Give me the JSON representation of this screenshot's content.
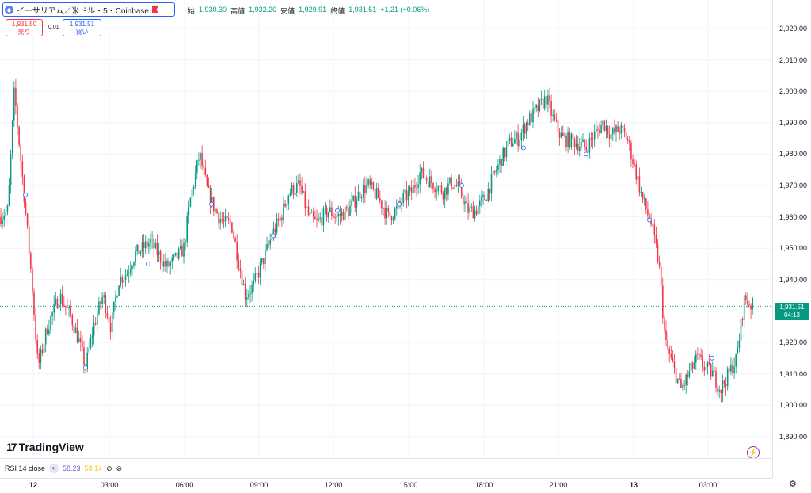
{
  "header": {
    "symbol_title": "イーサリアム／米ドル・5・Coinbase",
    "coin_icon": "ethereum-icon",
    "more_icon": "···",
    "ohlc": {
      "open_label": "始",
      "open_value": "1,930.30",
      "high_label": "高値",
      "high_value": "1,932.20",
      "low_label": "安値",
      "low_value": "1,929.91",
      "close_label": "終値",
      "close_value": "1,931.51",
      "change": "+1.21 (+0.06%)"
    }
  },
  "trade": {
    "sell_price": "1,931.50",
    "sell_label": "売り",
    "spread": "0.01",
    "buy_price": "1,931.51",
    "buy_label": "買い"
  },
  "price_tag": {
    "price": "1,931.51",
    "countdown": "04:13"
  },
  "logo_text": "TradingView",
  "logo_mark": "17",
  "bolt_icon": "⚡",
  "rsi": {
    "label": "RSI 14 close",
    "value1": "58.23",
    "value2": "54.14",
    "icon1": "⊘",
    "icon2": "⊘"
  },
  "gear_icon": "⚙",
  "colors": {
    "up": "#089981",
    "down": "#f23645",
    "grid": "#f0f3fa"
  },
  "chart_data": {
    "type": "candlestick",
    "yticks": [
      "2,020.00",
      "2,010.00",
      "2,000.00",
      "1,990.00",
      "1,980.00",
      "1,970.00",
      "1,960.00",
      "1,950.00",
      "1,940.00",
      "1,930.00",
      "1,920.00",
      "1,910.00",
      "1,900.00",
      "1,890.00"
    ],
    "xticks": [
      "12",
      "03:00",
      "06:00",
      "09:00",
      "12:00",
      "15:00",
      "18:00",
      "21:00",
      "13",
      "03:00"
    ],
    "ylim": [
      1885,
      2025
    ],
    "last_price": 1931.51,
    "approx_close_path": [
      [
        0,
        1960
      ],
      [
        10,
        1962
      ],
      [
        18,
        2000
      ],
      [
        30,
        1968
      ],
      [
        40,
        1940
      ],
      [
        48,
        1912
      ],
      [
        60,
        1925
      ],
      [
        75,
        1935
      ],
      [
        90,
        1928
      ],
      [
        100,
        1920
      ],
      [
        108,
        1912
      ],
      [
        118,
        1925
      ],
      [
        130,
        1935
      ],
      [
        140,
        1925
      ],
      [
        150,
        1940
      ],
      [
        160,
        1942
      ],
      [
        170,
        1948
      ],
      [
        180,
        1950
      ],
      [
        190,
        1952
      ],
      [
        200,
        1948
      ],
      [
        210,
        1944
      ],
      [
        220,
        1946
      ],
      [
        232,
        1950
      ],
      [
        240,
        1965
      ],
      [
        252,
        1980
      ],
      [
        262,
        1968
      ],
      [
        272,
        1962
      ],
      [
        282,
        1958
      ],
      [
        292,
        1958
      ],
      [
        302,
        1945
      ],
      [
        310,
        1935
      ],
      [
        320,
        1938
      ],
      [
        335,
        1948
      ],
      [
        345,
        1955
      ],
      [
        355,
        1960
      ],
      [
        365,
        1968
      ],
      [
        378,
        1970
      ],
      [
        390,
        1960
      ],
      [
        400,
        1958
      ],
      [
        415,
        1962
      ],
      [
        425,
        1960
      ],
      [
        440,
        1962
      ],
      [
        455,
        1968
      ],
      [
        465,
        1970
      ],
      [
        478,
        1966
      ],
      [
        490,
        1960
      ],
      [
        500,
        1962
      ],
      [
        510,
        1966
      ],
      [
        520,
        1968
      ],
      [
        530,
        1974
      ],
      [
        540,
        1972
      ],
      [
        550,
        1970
      ],
      [
        560,
        1968
      ],
      [
        570,
        1971
      ],
      [
        580,
        1969
      ],
      [
        590,
        1962
      ],
      [
        600,
        1962
      ],
      [
        612,
        1966
      ],
      [
        622,
        1972
      ],
      [
        632,
        1978
      ],
      [
        645,
        1984
      ],
      [
        655,
        1985
      ],
      [
        665,
        1990
      ],
      [
        678,
        1994
      ],
      [
        690,
        1998
      ],
      [
        700,
        1990
      ],
      [
        710,
        1985
      ],
      [
        725,
        1984
      ],
      [
        740,
        1982
      ],
      [
        750,
        1986
      ],
      [
        762,
        1990
      ],
      [
        772,
        1986
      ],
      [
        782,
        1988
      ],
      [
        792,
        1985
      ],
      [
        802,
        1975
      ],
      [
        812,
        1965
      ],
      [
        822,
        1958
      ],
      [
        832,
        1945
      ],
      [
        840,
        1920
      ],
      [
        850,
        1912
      ],
      [
        860,
        1905
      ],
      [
        870,
        1910
      ],
      [
        880,
        1915
      ],
      [
        890,
        1912
      ],
      [
        900,
        1910
      ],
      [
        910,
        1905
      ],
      [
        920,
        1910
      ],
      [
        930,
        1915
      ],
      [
        940,
        1934
      ],
      [
        948,
        1932
      ],
      [
        952,
        1931.51
      ]
    ]
  }
}
